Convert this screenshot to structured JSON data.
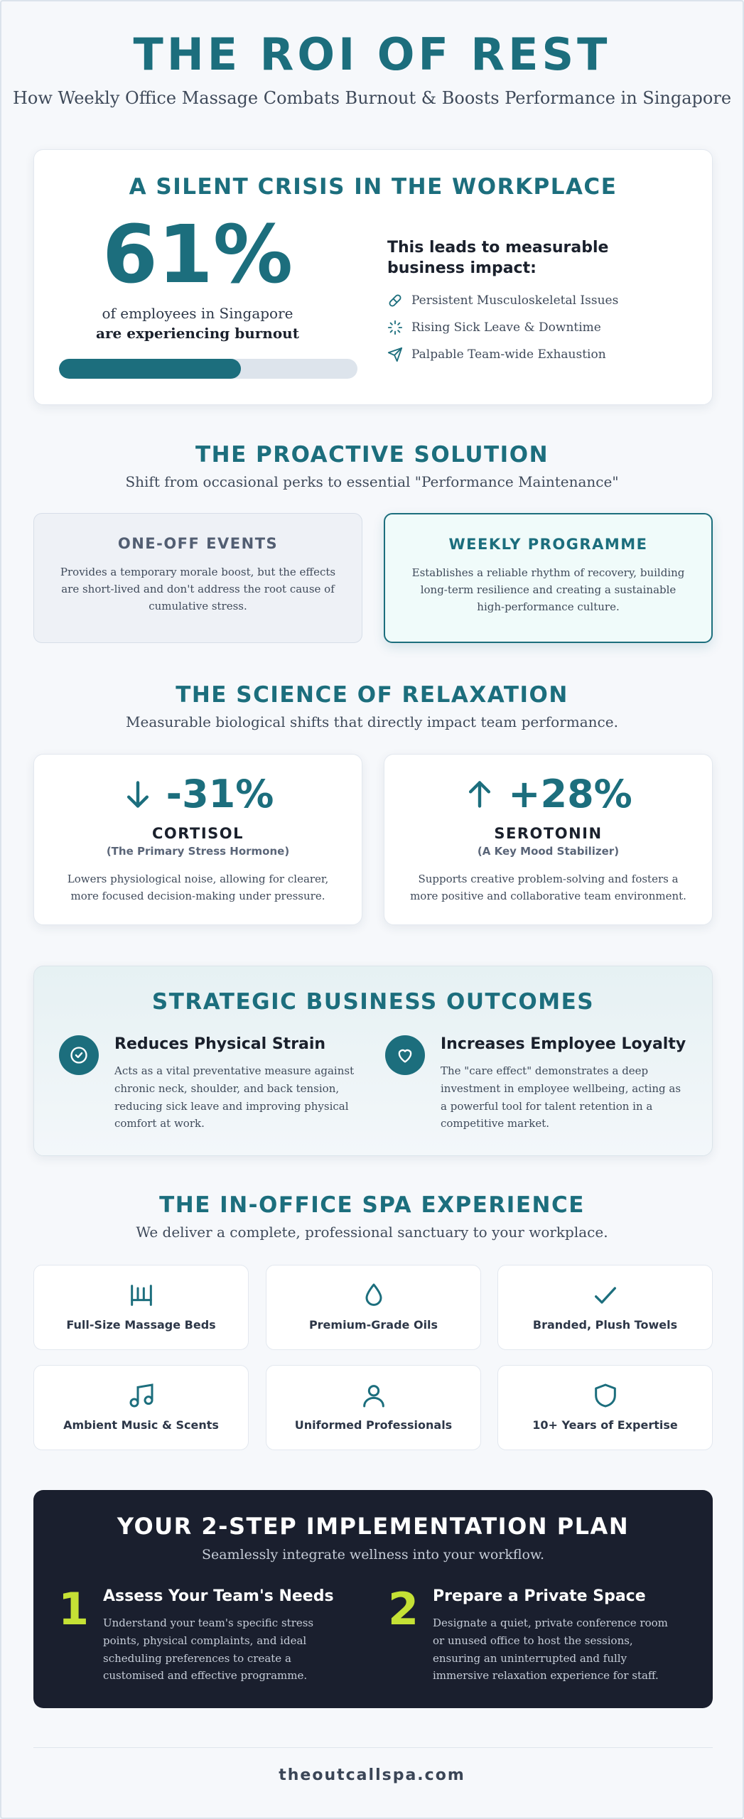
{
  "header": {
    "title": "THE ROI OF REST",
    "subtitle": "How Weekly Office Massage Combats Burnout & Boosts Performance in Singapore"
  },
  "crisis": {
    "title": "A SILENT CRISIS IN THE WORKPLACE",
    "stat": "61%",
    "stat_line1": "of employees in Singapore",
    "stat_line2": "are experiencing burnout",
    "progress_percent": 61,
    "impact_title": "This leads to measurable business impact:",
    "impacts": [
      {
        "icon": "bandage-icon",
        "label": "Persistent Musculoskeletal Issues"
      },
      {
        "icon": "loader-icon",
        "label": "Rising Sick Leave & Downtime"
      },
      {
        "icon": "paper-plane-icon",
        "label": "Palpable Team-wide Exhaustion"
      }
    ]
  },
  "solution": {
    "title": "THE PROACTIVE SOLUTION",
    "subtitle": "Shift from occasional perks to essential \"Performance Maintenance\"",
    "oneoff": {
      "title": "ONE-OFF EVENTS",
      "desc": "Provides a temporary morale boost, but the effects are short-lived and don't address the root cause of cumulative stress."
    },
    "weekly": {
      "title": "WEEKLY PROGRAMME",
      "desc": "Establishes a reliable rhythm of recovery, building long-term resilience and creating a sustainable high-performance culture."
    }
  },
  "science": {
    "title": "THE SCIENCE OF RELAXATION",
    "subtitle": "Measurable biological shifts that directly impact team performance.",
    "cortisol": {
      "value": "-31%",
      "name": "CORTISOL",
      "sub": "(The Primary Stress Hormone)",
      "desc": "Lowers physiological noise, allowing for clearer, more focused decision-making under pressure."
    },
    "serotonin": {
      "value": "+28%",
      "name": "SEROTONIN",
      "sub": "(A Key Mood Stabilizer)",
      "desc": "Supports creative problem-solving and fosters a more positive and collaborative team environment."
    }
  },
  "outcomes": {
    "title": "STRATEGIC BUSINESS OUTCOMES",
    "items": [
      {
        "icon": "check-circle-icon",
        "title": "Reduces Physical Strain",
        "desc": "Acts as a vital preventative measure against chronic neck, shoulder, and back tension, reducing sick leave and improving physical comfort at work."
      },
      {
        "icon": "heart-icon",
        "title": "Increases Employee Loyalty",
        "desc": "The \"care effect\" demonstrates a deep investment in employee wellbeing, acting as a powerful tool for talent retention in a competitive market."
      }
    ]
  },
  "spa": {
    "title": "THE IN-OFFICE SPA EXPERIENCE",
    "subtitle": "We deliver a complete, professional sanctuary to your workplace.",
    "items": [
      {
        "icon": "massage-bed-icon",
        "label": "Full-Size Massage Beds"
      },
      {
        "icon": "oil-drop-icon",
        "label": "Premium-Grade Oils"
      },
      {
        "icon": "checkmark-icon",
        "label": "Branded, Plush Towels"
      },
      {
        "icon": "music-note-icon",
        "label": "Ambient Music & Scents"
      },
      {
        "icon": "user-icon",
        "label": "Uniformed Professionals"
      },
      {
        "icon": "shield-icon",
        "label": "10+ Years of Expertise"
      }
    ]
  },
  "plan": {
    "title": "YOUR 2-STEP IMPLEMENTATION PLAN",
    "subtitle": "Seamlessly integrate wellness into your workflow.",
    "steps": [
      {
        "num": "1",
        "title": "Assess Your Team's Needs",
        "desc": "Understand your team's specific stress points, physical complaints, and ideal scheduling preferences to create a customised and effective programme."
      },
      {
        "num": "2",
        "title": "Prepare a Private Space",
        "desc": "Designate a quiet, private conference room or unused office to host the sessions, ensuring an uninterrupted and fully immersive relaxation experience for staff."
      }
    ]
  },
  "footer": {
    "site": "theoutcallspa.com"
  },
  "colors": {
    "accent": "#1c6e7d",
    "dark": "#1a1f2e",
    "lime": "#c5e135"
  }
}
